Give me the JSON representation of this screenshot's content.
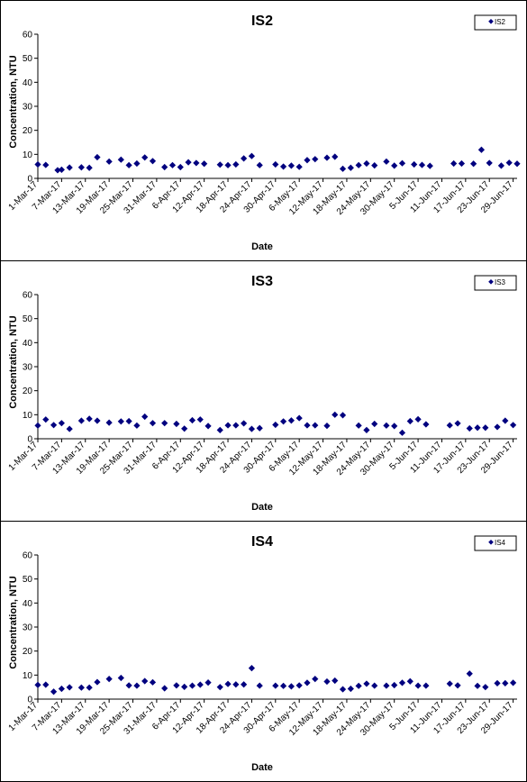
{
  "marker_color": "#00007f",
  "chart_data": [
    {
      "type": "scatter",
      "title": "IS2",
      "xlabel": "Date",
      "ylabel": "Concentration, NTU",
      "ylim": [
        0,
        60
      ],
      "yticks": [
        0,
        10,
        20,
        30,
        40,
        50,
        60
      ],
      "xlim": [
        "2017-03-01",
        "2017-06-30"
      ],
      "xtick_labels": [
        "1-Mar-17",
        "7-Mar-17",
        "13-Mar-17",
        "19-Mar-17",
        "25-Mar-17",
        "31-Mar-17",
        "6-Apr-17",
        "12-Apr-17",
        "18-Apr-17",
        "24-Apr-17",
        "30-Apr-17",
        "6-May-17",
        "12-May-17",
        "18-May-17",
        "24-May-17",
        "30-May-17",
        "5-Jun-17",
        "11-Jun-17",
        "17-Jun-17",
        "23-Jun-17",
        "29-Jun-17"
      ],
      "legend": "top-right",
      "grid": false,
      "series": [
        {
          "name": "IS2",
          "x": [
            "2017-03-01",
            "2017-03-03",
            "2017-03-06",
            "2017-03-07",
            "2017-03-09",
            "2017-03-12",
            "2017-03-14",
            "2017-03-16",
            "2017-03-19",
            "2017-03-22",
            "2017-03-24",
            "2017-03-26",
            "2017-03-28",
            "2017-03-30",
            "2017-04-02",
            "2017-04-04",
            "2017-04-06",
            "2017-04-08",
            "2017-04-10",
            "2017-04-12",
            "2017-04-16",
            "2017-04-18",
            "2017-04-20",
            "2017-04-22",
            "2017-04-24",
            "2017-04-26",
            "2017-04-30",
            "2017-05-02",
            "2017-05-04",
            "2017-05-06",
            "2017-05-08",
            "2017-05-10",
            "2017-05-13",
            "2017-05-15",
            "2017-05-17",
            "2017-05-19",
            "2017-05-21",
            "2017-05-23",
            "2017-05-25",
            "2017-05-28",
            "2017-05-30",
            "2017-06-01",
            "2017-06-04",
            "2017-06-06",
            "2017-06-08",
            "2017-06-14",
            "2017-06-16",
            "2017-06-19",
            "2017-06-21",
            "2017-06-23",
            "2017-06-26",
            "2017-06-28",
            "2017-06-30"
          ],
          "y": [
            5.8,
            5.6,
            3.4,
            3.6,
            4.5,
            4.6,
            4.4,
            8.8,
            7.0,
            7.8,
            5.5,
            6.2,
            8.7,
            7.2,
            4.7,
            5.5,
            4.7,
            6.7,
            6.4,
            6.1,
            5.7,
            5.5,
            5.8,
            8.3,
            9.3,
            5.5,
            5.8,
            4.9,
            5.3,
            4.8,
            7.6,
            8.0,
            8.6,
            9.0,
            4.0,
            4.4,
            5.5,
            6.2,
            5.4,
            7.0,
            5.3,
            6.3,
            5.8,
            5.6,
            5.2,
            6.2,
            6.2,
            6.1,
            11.9,
            6.4,
            5.3,
            6.5,
            6.1
          ]
        }
      ]
    },
    {
      "type": "scatter",
      "title": "IS3",
      "xlabel": "Date",
      "ylabel": "Concentration, NTU",
      "ylim": [
        0,
        60
      ],
      "yticks": [
        0,
        10,
        20,
        30,
        40,
        50,
        60
      ],
      "xlim": [
        "2017-03-01",
        "2017-06-30"
      ],
      "xtick_labels": [
        "1-Mar-17",
        "7-Mar-17",
        "13-Mar-17",
        "19-Mar-17",
        "25-Mar-17",
        "31-Mar-17",
        "6-Apr-17",
        "12-Apr-17",
        "18-Apr-17",
        "24-Apr-17",
        "30-Apr-17",
        "6-May-17",
        "12-May-17",
        "18-May-17",
        "24-May-17",
        "30-May-17",
        "5-Jun-17",
        "11-Jun-17",
        "17-Jun-17",
        "23-Jun-17",
        "29-Jun-17"
      ],
      "legend": "top-right",
      "grid": false,
      "series": [
        {
          "name": "IS3",
          "x": [
            "2017-03-01",
            "2017-03-03",
            "2017-03-05",
            "2017-03-07",
            "2017-03-09",
            "2017-03-12",
            "2017-03-14",
            "2017-03-16",
            "2017-03-19",
            "2017-03-22",
            "2017-03-24",
            "2017-03-26",
            "2017-03-28",
            "2017-03-30",
            "2017-04-02",
            "2017-04-05",
            "2017-04-07",
            "2017-04-09",
            "2017-04-11",
            "2017-04-13",
            "2017-04-16",
            "2017-04-18",
            "2017-04-20",
            "2017-04-22",
            "2017-04-24",
            "2017-04-26",
            "2017-04-30",
            "2017-05-02",
            "2017-05-04",
            "2017-05-06",
            "2017-05-08",
            "2017-05-10",
            "2017-05-13",
            "2017-05-15",
            "2017-05-17",
            "2017-05-21",
            "2017-05-23",
            "2017-05-25",
            "2017-05-28",
            "2017-05-30",
            "2017-06-01",
            "2017-06-03",
            "2017-06-05",
            "2017-06-07",
            "2017-06-13",
            "2017-06-15",
            "2017-06-18",
            "2017-06-20",
            "2017-06-22",
            "2017-06-25",
            "2017-06-27",
            "2017-06-29"
          ],
          "y": [
            5.5,
            8.0,
            5.7,
            6.5,
            4.1,
            7.5,
            8.3,
            7.5,
            6.7,
            7.2,
            7.3,
            5.5,
            9.2,
            6.5,
            6.5,
            6.2,
            4.2,
            7.7,
            8.0,
            5.3,
            3.6,
            5.6,
            5.6,
            6.4,
            4.1,
            4.4,
            5.8,
            7.2,
            7.6,
            8.6,
            5.6,
            5.6,
            5.4,
            10.0,
            9.8,
            5.5,
            3.6,
            6.2,
            5.5,
            5.3,
            2.5,
            7.3,
            8.1,
            6.0,
            5.6,
            6.4,
            4.3,
            4.6,
            4.6,
            4.9,
            7.5,
            5.7
          ]
        }
      ]
    },
    {
      "type": "scatter",
      "title": "IS4",
      "xlabel": "Date",
      "ylabel": "Concentration, NTU",
      "ylim": [
        0,
        60
      ],
      "yticks": [
        0,
        10,
        20,
        30,
        40,
        50,
        60
      ],
      "xlim": [
        "2017-03-01",
        "2017-06-30"
      ],
      "xtick_labels": [
        "1-Mar-17",
        "7-Mar-17",
        "13-Mar-17",
        "19-Mar-17",
        "25-Mar-17",
        "31-Mar-17",
        "6-Apr-17",
        "12-Apr-17",
        "18-Apr-17",
        "24-Apr-17",
        "30-Apr-17",
        "6-May-17",
        "12-May-17",
        "18-May-17",
        "24-May-17",
        "30-May-17",
        "5-Jun-17",
        "11-Jun-17",
        "17-Jun-17",
        "23-Jun-17",
        "29-Jun-17"
      ],
      "legend": "top-right",
      "grid": false,
      "series": [
        {
          "name": "IS4",
          "x": [
            "2017-03-01",
            "2017-03-03",
            "2017-03-05",
            "2017-03-07",
            "2017-03-09",
            "2017-03-12",
            "2017-03-14",
            "2017-03-16",
            "2017-03-19",
            "2017-03-22",
            "2017-03-24",
            "2017-03-26",
            "2017-03-28",
            "2017-03-30",
            "2017-04-02",
            "2017-04-05",
            "2017-04-07",
            "2017-04-09",
            "2017-04-11",
            "2017-04-13",
            "2017-04-16",
            "2017-04-18",
            "2017-04-20",
            "2017-04-22",
            "2017-04-24",
            "2017-04-26",
            "2017-04-30",
            "2017-05-02",
            "2017-05-04",
            "2017-05-06",
            "2017-05-08",
            "2017-05-10",
            "2017-05-13",
            "2017-05-15",
            "2017-05-17",
            "2017-05-19",
            "2017-05-21",
            "2017-05-23",
            "2017-05-25",
            "2017-05-28",
            "2017-05-30",
            "2017-06-01",
            "2017-06-03",
            "2017-06-05",
            "2017-06-07",
            "2017-06-13",
            "2017-06-15",
            "2017-06-18",
            "2017-06-20",
            "2017-06-22",
            "2017-06-25",
            "2017-06-27",
            "2017-06-29"
          ],
          "y": [
            5.9,
            6.0,
            3.1,
            4.3,
            4.9,
            4.8,
            4.8,
            7.1,
            8.4,
            8.8,
            5.7,
            5.6,
            7.5,
            7.0,
            4.5,
            5.7,
            5.1,
            5.6,
            6.0,
            6.9,
            5.0,
            6.3,
            6.1,
            6.1,
            12.9,
            5.6,
            5.6,
            5.5,
            5.3,
            5.7,
            6.8,
            8.4,
            7.3,
            7.7,
            4.1,
            4.3,
            5.5,
            6.4,
            5.6,
            5.6,
            5.8,
            6.8,
            7.4,
            5.6,
            5.6,
            6.4,
            5.7,
            10.6,
            5.5,
            5.0,
            6.6,
            6.6,
            6.8
          ]
        }
      ]
    }
  ]
}
